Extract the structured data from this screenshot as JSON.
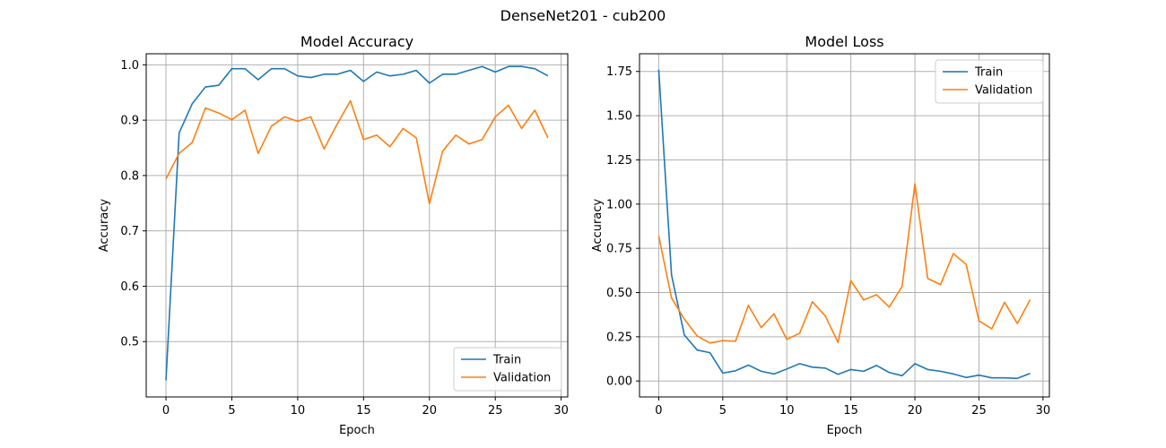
{
  "figure": {
    "suptitle": "DenseNet201 - cub200"
  },
  "chart_data": [
    {
      "type": "line",
      "title": "Model Accuracy",
      "xlabel": "Epoch",
      "ylabel": "Accuracy",
      "xlim": [
        -1.5,
        30.5
      ],
      "ylim": [
        0.4,
        1.02
      ],
      "xticks": [
        0,
        5,
        10,
        15,
        20,
        25,
        30
      ],
      "yticks": [
        0.5,
        0.6,
        0.7,
        0.8,
        0.9,
        1.0
      ],
      "ytick_labels": [
        "0.5",
        "0.6",
        "0.7",
        "0.8",
        "0.9",
        "1.0"
      ],
      "grid": true,
      "legend": "lower-right",
      "x": [
        0,
        1,
        2,
        3,
        4,
        5,
        6,
        7,
        8,
        9,
        10,
        11,
        12,
        13,
        14,
        15,
        16,
        17,
        18,
        19,
        20,
        21,
        22,
        23,
        24,
        25,
        26,
        27,
        28,
        29
      ],
      "series": [
        {
          "name": "Train",
          "color": "#1f77b4",
          "values": [
            0.43,
            0.877,
            0.93,
            0.96,
            0.963,
            0.993,
            0.993,
            0.973,
            0.993,
            0.993,
            0.98,
            0.977,
            0.983,
            0.983,
            0.99,
            0.97,
            0.987,
            0.98,
            0.983,
            0.99,
            0.967,
            0.983,
            0.983,
            0.99,
            0.997,
            0.987,
            0.997,
            0.997,
            0.993,
            0.98
          ]
        },
        {
          "name": "Validation",
          "color": "#ff7f0e",
          "values": [
            0.794,
            0.84,
            0.86,
            0.922,
            0.913,
            0.901,
            0.918,
            0.84,
            0.889,
            0.906,
            0.898,
            0.906,
            0.848,
            0.893,
            0.935,
            0.865,
            0.873,
            0.852,
            0.885,
            0.868,
            0.749,
            0.844,
            0.873,
            0.857,
            0.865,
            0.906,
            0.927,
            0.885,
            0.918,
            0.868
          ]
        }
      ]
    },
    {
      "type": "line",
      "title": "Model Loss",
      "xlabel": "Epoch",
      "ylabel": "Accuracy",
      "xlim": [
        -1.5,
        30.5
      ],
      "ylim": [
        -0.09,
        1.85
      ],
      "xticks": [
        0,
        5,
        10,
        15,
        20,
        25,
        30
      ],
      "yticks": [
        0.0,
        0.25,
        0.5,
        0.75,
        1.0,
        1.25,
        1.5,
        1.75
      ],
      "ytick_labels": [
        "0.00",
        "0.25",
        "0.50",
        "0.75",
        "1.00",
        "1.25",
        "1.50",
        "1.75"
      ],
      "grid": true,
      "legend": "upper-right",
      "x": [
        0,
        1,
        2,
        3,
        4,
        5,
        6,
        7,
        8,
        9,
        10,
        11,
        12,
        13,
        14,
        15,
        16,
        17,
        18,
        19,
        20,
        21,
        22,
        23,
        24,
        25,
        26,
        27,
        28,
        29
      ],
      "series": [
        {
          "name": "Train",
          "color": "#1f77b4",
          "values": [
            1.76,
            0.6,
            0.26,
            0.175,
            0.16,
            0.045,
            0.058,
            0.09,
            0.055,
            0.04,
            0.068,
            0.098,
            0.078,
            0.073,
            0.038,
            0.065,
            0.055,
            0.088,
            0.048,
            0.03,
            0.098,
            0.065,
            0.055,
            0.04,
            0.02,
            0.033,
            0.018,
            0.018,
            0.015,
            0.043
          ]
        },
        {
          "name": "Validation",
          "color": "#ff7f0e",
          "values": [
            0.82,
            0.47,
            0.35,
            0.255,
            0.215,
            0.228,
            0.225,
            0.428,
            0.302,
            0.38,
            0.235,
            0.27,
            0.448,
            0.368,
            0.218,
            0.568,
            0.458,
            0.488,
            0.418,
            0.535,
            1.115,
            0.58,
            0.545,
            0.72,
            0.66,
            0.34,
            0.295,
            0.445,
            0.325,
            0.46
          ]
        }
      ]
    }
  ]
}
